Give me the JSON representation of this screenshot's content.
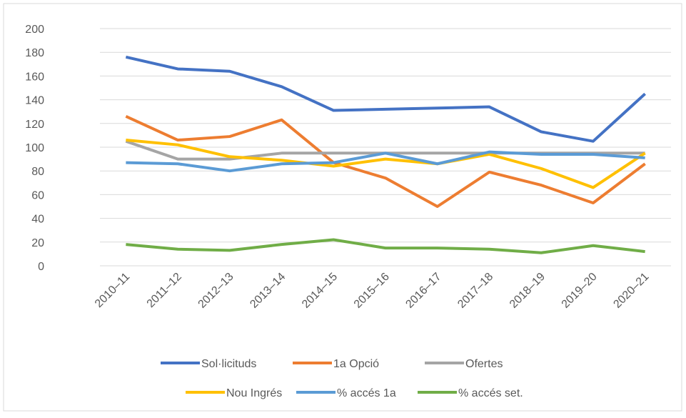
{
  "chart_data": {
    "type": "line",
    "categories": [
      "2010–11",
      "2011–12",
      "2012–13",
      "2013–14",
      "2014–15",
      "2015–16",
      "2016–17",
      "2017–18",
      "2018–19",
      "2019–20",
      "2020–21"
    ],
    "series": [
      {
        "name": "Sol·licituds",
        "color": "#4472c4",
        "values": [
          176,
          166,
          164,
          151,
          131,
          132,
          133,
          134,
          113,
          105,
          145
        ]
      },
      {
        "name": "1a Opció",
        "color": "#ed7d31",
        "values": [
          126,
          106,
          109,
          123,
          87,
          74,
          50,
          79,
          68,
          53,
          86
        ]
      },
      {
        "name": "Ofertes",
        "color": "#a5a5a5",
        "values": [
          105,
          90,
          90,
          95,
          95,
          95,
          95,
          95,
          95,
          95,
          95
        ]
      },
      {
        "name": "Nou Ingrés",
        "color": "#ffc000",
        "values": [
          106,
          102,
          92,
          89,
          84,
          90,
          86,
          94,
          82,
          66,
          95
        ]
      },
      {
        "name": "% accés 1a",
        "color": "#5b9bd5",
        "values": [
          87,
          86,
          80,
          86,
          87,
          95,
          86,
          96,
          94,
          94,
          91
        ]
      },
      {
        "name": "% accés set.",
        "color": "#70ad47",
        "values": [
          18,
          14,
          13,
          18,
          22,
          15,
          15,
          14,
          11,
          17,
          12
        ]
      }
    ],
    "ylim": [
      0,
      200
    ],
    "yticks": [
      0,
      20,
      40,
      60,
      80,
      100,
      120,
      140,
      160,
      180,
      200
    ],
    "grid": true,
    "legend": "bottom"
  }
}
